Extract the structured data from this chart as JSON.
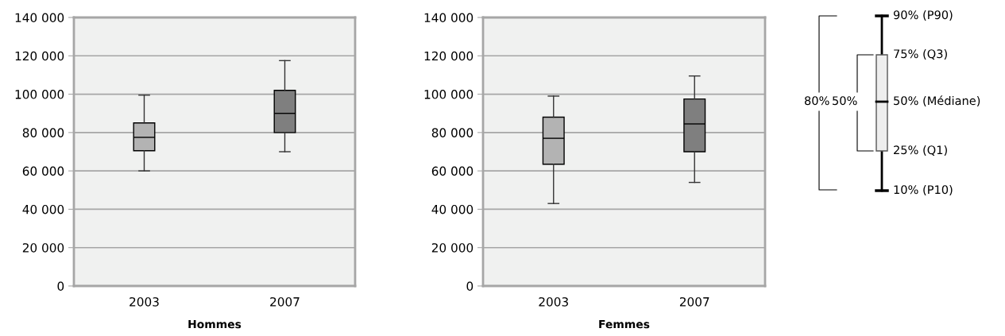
{
  "chart_data": [
    {
      "type": "box",
      "xlabel": "Hommes",
      "categories": [
        "2003",
        "2007"
      ],
      "colors": [
        "#b3b3b3",
        "#7f7f7f"
      ],
      "boxes": [
        {
          "low": 60000,
          "q1": 70500,
          "median": 77500,
          "q3": 85000,
          "high": 99500
        },
        {
          "low": 70000,
          "q1": 80000,
          "median": 90000,
          "q3": 102000,
          "high": 117500
        }
      ],
      "ylim": [
        0,
        140000
      ],
      "yticks": [
        0,
        {
          "value": 20000,
          "label": "20 000"
        },
        {
          "value": 40000,
          "label": "40 000"
        },
        {
          "value": 60000,
          "label": "60 000"
        },
        {
          "value": 80000,
          "label": "80 000"
        },
        {
          "value": 100000,
          "label": "100 000"
        },
        {
          "value": 120000,
          "label": "120 000"
        },
        {
          "value": 140000,
          "label": "140 000"
        }
      ],
      "grid": "y"
    },
    {
      "type": "box",
      "xlabel": "Femmes",
      "categories": [
        "2003",
        "2007"
      ],
      "colors": [
        "#b3b3b3",
        "#7f7f7f"
      ],
      "boxes": [
        {
          "low": 43000,
          "q1": 63500,
          "median": 77000,
          "q3": 88000,
          "high": 99000
        },
        {
          "low": 54000,
          "q1": 70000,
          "median": 84500,
          "q3": 97500,
          "high": 109500
        }
      ],
      "ylim": [
        0,
        140000
      ],
      "yticks": [
        0,
        {
          "value": 20000,
          "label": "20 000"
        },
        {
          "value": 40000,
          "label": "40 000"
        },
        {
          "value": 60000,
          "label": "60 000"
        },
        {
          "value": 80000,
          "label": "80 000"
        },
        {
          "value": 100000,
          "label": "100 000"
        },
        {
          "value": 120000,
          "label": "120 000"
        },
        {
          "value": 140000,
          "label": "140 000"
        }
      ],
      "grid": "y"
    },
    {
      "type": "other",
      "annotations": [
        "90% (P90)",
        "75% (Q3)",
        "50% (Médiane)",
        "25% (Q1)",
        "10% (P10)",
        "80%",
        "50%"
      ]
    }
  ]
}
